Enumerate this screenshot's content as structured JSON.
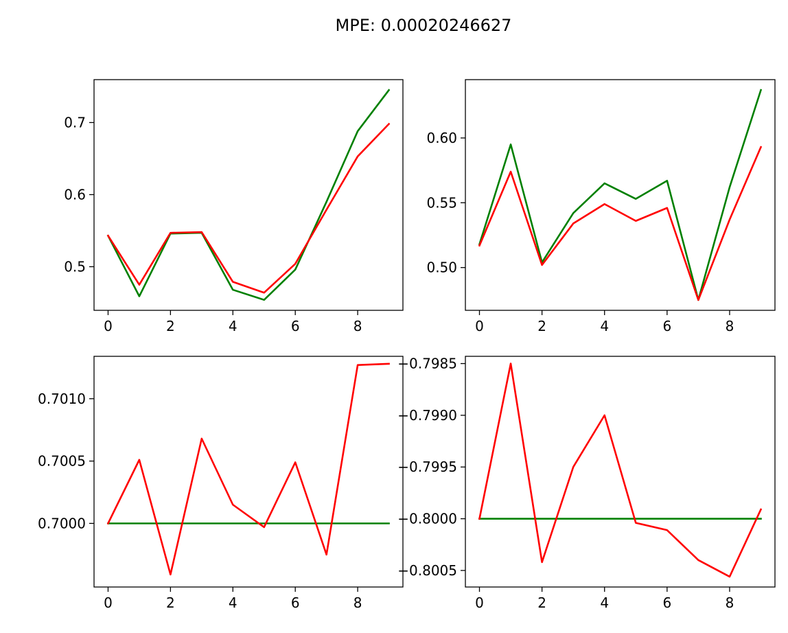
{
  "figure": {
    "title": "MPE: 0.00020246627"
  },
  "colors": {
    "series_a": "#008000",
    "series_b": "#ff0000"
  },
  "chart_data": [
    {
      "type": "line",
      "x": [
        0,
        1,
        2,
        3,
        4,
        5,
        6,
        7,
        8,
        9
      ],
      "series": [
        {
          "color": "#008000",
          "values": [
            0.543,
            0.459,
            0.546,
            0.547,
            0.468,
            0.454,
            0.496,
            0.59,
            0.688,
            0.745
          ]
        },
        {
          "color": "#ff0000",
          "values": [
            0.543,
            0.475,
            0.547,
            0.548,
            0.479,
            0.464,
            0.504,
            0.579,
            0.653,
            0.698
          ]
        }
      ],
      "xlim": [
        -0.45,
        9.45
      ],
      "ylim": [
        0.4395,
        0.7595
      ],
      "xticks": [
        0,
        2,
        4,
        6,
        8
      ],
      "xtick_labels": [
        "0",
        "2",
        "4",
        "6",
        "8"
      ],
      "yticks": [
        0.5,
        0.6,
        0.7
      ],
      "ytick_labels": [
        "0.5",
        "0.6",
        "0.7"
      ],
      "grid": false
    },
    {
      "type": "line",
      "x": [
        0,
        1,
        2,
        3,
        4,
        5,
        6,
        7,
        8,
        9
      ],
      "series": [
        {
          "color": "#008000",
          "values": [
            0.518,
            0.595,
            0.504,
            0.542,
            0.565,
            0.553,
            0.567,
            0.475,
            0.562,
            0.637
          ]
        },
        {
          "color": "#ff0000",
          "values": [
            0.517,
            0.574,
            0.502,
            0.534,
            0.549,
            0.536,
            0.546,
            0.475,
            0.537,
            0.593
          ]
        }
      ],
      "xlim": [
        -0.45,
        9.45
      ],
      "ylim": [
        0.467,
        0.645
      ],
      "xticks": [
        0,
        2,
        4,
        6,
        8
      ],
      "xtick_labels": [
        "0",
        "2",
        "4",
        "6",
        "8"
      ],
      "yticks": [
        0.5,
        0.55,
        0.6
      ],
      "ytick_labels": [
        "0.50",
        "0.55",
        "0.60"
      ],
      "grid": false
    },
    {
      "type": "line",
      "x": [
        0,
        1,
        2,
        3,
        4,
        5,
        6,
        7,
        8,
        9
      ],
      "series": [
        {
          "color": "#008000",
          "values": [
            0.7,
            0.7,
            0.7,
            0.7,
            0.7,
            0.7,
            0.7,
            0.7,
            0.7,
            0.7
          ]
        },
        {
          "color": "#ff0000",
          "values": [
            0.7,
            0.70051,
            0.69959,
            0.70068,
            0.70015,
            0.69997,
            0.70049,
            0.69975,
            0.70127,
            0.70128
          ]
        }
      ],
      "xlim": [
        -0.45,
        9.45
      ],
      "ylim": [
        0.69949,
        0.70134
      ],
      "xticks": [
        0,
        2,
        4,
        6,
        8
      ],
      "xtick_labels": [
        "0",
        "2",
        "4",
        "6",
        "8"
      ],
      "yticks": [
        0.7,
        0.7005,
        0.701
      ],
      "ytick_labels": [
        "0.7000",
        "0.7005",
        "0.7010"
      ],
      "grid": false
    },
    {
      "type": "line",
      "x": [
        0,
        1,
        2,
        3,
        4,
        5,
        6,
        7,
        8,
        9
      ],
      "series": [
        {
          "color": "#008000",
          "values": [
            -0.8,
            -0.8,
            -0.8,
            -0.8,
            -0.8,
            -0.8,
            -0.8,
            -0.8,
            -0.8,
            -0.8
          ]
        },
        {
          "color": "#ff0000",
          "values": [
            -0.8,
            -0.7985,
            -0.80042,
            -0.7995,
            -0.799,
            -0.80004,
            -0.80011,
            -0.8004,
            -0.80056,
            -0.79991
          ]
        }
      ],
      "xlim": [
        -0.45,
        9.45
      ],
      "ylim": [
        -0.80066,
        -0.79843
      ],
      "xticks": [
        0,
        2,
        4,
        6,
        8
      ],
      "xtick_labels": [
        "0",
        "2",
        "4",
        "6",
        "8"
      ],
      "yticks": [
        -0.8005,
        -0.8,
        -0.7995,
        -0.799,
        -0.7985
      ],
      "ytick_labels": [
        "−0.8005",
        "−0.8000",
        "−0.7995",
        "−0.7990",
        "−0.7985"
      ],
      "grid": false
    }
  ]
}
